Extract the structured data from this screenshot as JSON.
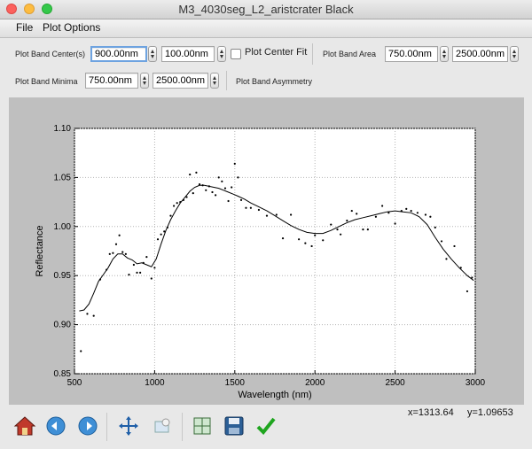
{
  "window": {
    "title": "M3_4030seg_L2_aristcrater Black"
  },
  "menu": {
    "file": "File",
    "plot_options": "Plot Options"
  },
  "controls": {
    "band_center_label": "Plot Band Center(s)",
    "band_center_min": "900.00nm",
    "band_center_width": "100.00nm",
    "center_fit_label": "Plot Center Fit",
    "center_fit_checked": false,
    "band_area_label": "Plot Band Area",
    "band_area_min": "750.00nm",
    "band_area_max": "2500.00nm",
    "band_minima_label": "Plot Band Minima",
    "band_minima_min": "750.00nm",
    "band_minima_max": "2500.00nm",
    "band_asymmetry_label": "Plot Band Asymmetry"
  },
  "status": {
    "x": "x=1313.64",
    "y": "y=1.09653"
  },
  "toolbar": [
    "home-icon",
    "back-arrow-icon",
    "forward-arrow-icon",
    "pan-icon",
    "zoom-icon",
    "subplot-config-icon",
    "save-icon",
    "checkmark-icon"
  ],
  "colors": {
    "plot_bg": "#bfbfbf",
    "line": "#000000"
  },
  "chart_data": {
    "type": "scatter",
    "xlabel": "Wavelength (nm)",
    "ylabel": "Reflectance",
    "xlim": [
      500,
      3000
    ],
    "ylim": [
      0.85,
      1.1
    ],
    "xticks": [
      500,
      1000,
      1500,
      2000,
      2500,
      3000
    ],
    "yticks": [
      0.85,
      0.9,
      0.95,
      1.0,
      1.05,
      1.1
    ],
    "grid": true,
    "series": [
      {
        "kind": "points",
        "x": [
          540,
          580,
          620,
          660,
          700,
          720,
          740,
          760,
          780,
          800,
          820,
          840,
          870,
          890,
          910,
          930,
          950,
          980,
          1000,
          1020,
          1040,
          1060,
          1080,
          1100,
          1120,
          1140,
          1160,
          1180,
          1200,
          1220,
          1240,
          1260,
          1280,
          1300,
          1320,
          1340,
          1360,
          1380,
          1400,
          1420,
          1440,
          1460,
          1480,
          1500,
          1520,
          1540,
          1570,
          1600,
          1650,
          1700,
          1760,
          1800,
          1850,
          1900,
          1940,
          1980,
          2000,
          2050,
          2100,
          2140,
          2160,
          2200,
          2230,
          2260,
          2300,
          2330,
          2380,
          2420,
          2460,
          2500,
          2540,
          2570,
          2600,
          2640,
          2690,
          2720,
          2750,
          2790,
          2820,
          2870,
          2910,
          2950,
          2980
        ],
        "y": [
          0.873,
          0.911,
          0.909,
          0.946,
          0.956,
          0.972,
          0.973,
          0.982,
          0.991,
          0.974,
          0.972,
          0.951,
          0.961,
          0.953,
          0.953,
          0.963,
          0.969,
          0.947,
          0.958,
          0.987,
          0.992,
          0.995,
          0.999,
          1.011,
          1.021,
          1.024,
          1.025,
          1.027,
          1.03,
          1.053,
          1.034,
          1.055,
          1.043,
          1.042,
          1.037,
          1.041,
          1.035,
          1.032,
          1.05,
          1.046,
          1.039,
          1.026,
          1.04,
          1.064,
          1.05,
          1.027,
          1.019,
          1.019,
          1.017,
          1.011,
          1.012,
          0.988,
          1.012,
          0.987,
          0.983,
          0.98,
          0.991,
          0.986,
          1.002,
          0.997,
          0.992,
          1.006,
          1.016,
          1.013,
          0.997,
          0.997,
          1.01,
          1.021,
          1.014,
          1.003,
          1.016,
          1.018,
          1.016,
          1.014,
          1.012,
          1.01,
          0.999,
          0.985,
          0.967,
          0.98,
          0.958,
          0.934,
          0.948
        ]
      },
      {
        "kind": "line",
        "x": [
          530,
          560,
          590,
          620,
          650,
          680,
          710,
          740,
          770,
          800,
          830,
          860,
          890,
          920,
          950,
          980,
          1010,
          1040,
          1070,
          1100,
          1130,
          1160,
          1190,
          1220,
          1250,
          1280,
          1310,
          1340,
          1370,
          1400,
          1430,
          1460,
          1490,
          1520,
          1560,
          1600,
          1650,
          1700,
          1750,
          1800,
          1850,
          1900,
          1950,
          2000,
          2050,
          2100,
          2150,
          2200,
          2250,
          2300,
          2350,
          2400,
          2450,
          2500,
          2550,
          2600,
          2650,
          2700,
          2750,
          2800,
          2850,
          2900,
          2950,
          2990
        ],
        "y": [
          0.914,
          0.915,
          0.921,
          0.932,
          0.944,
          0.951,
          0.958,
          0.967,
          0.972,
          0.972,
          0.968,
          0.966,
          0.962,
          0.963,
          0.961,
          0.959,
          0.967,
          0.982,
          0.996,
          1.007,
          1.016,
          1.024,
          1.03,
          1.036,
          1.04,
          1.042,
          1.042,
          1.041,
          1.04,
          1.039,
          1.037,
          1.035,
          1.033,
          1.031,
          1.028,
          1.024,
          1.02,
          1.016,
          1.011,
          1.006,
          1.001,
          0.997,
          0.994,
          0.993,
          0.993,
          0.996,
          1.0,
          1.004,
          1.007,
          1.009,
          1.011,
          1.013,
          1.015,
          1.016,
          1.015,
          1.014,
          1.01,
          1.002,
          0.989,
          0.977,
          0.967,
          0.958,
          0.95,
          0.945
        ]
      }
    ]
  }
}
